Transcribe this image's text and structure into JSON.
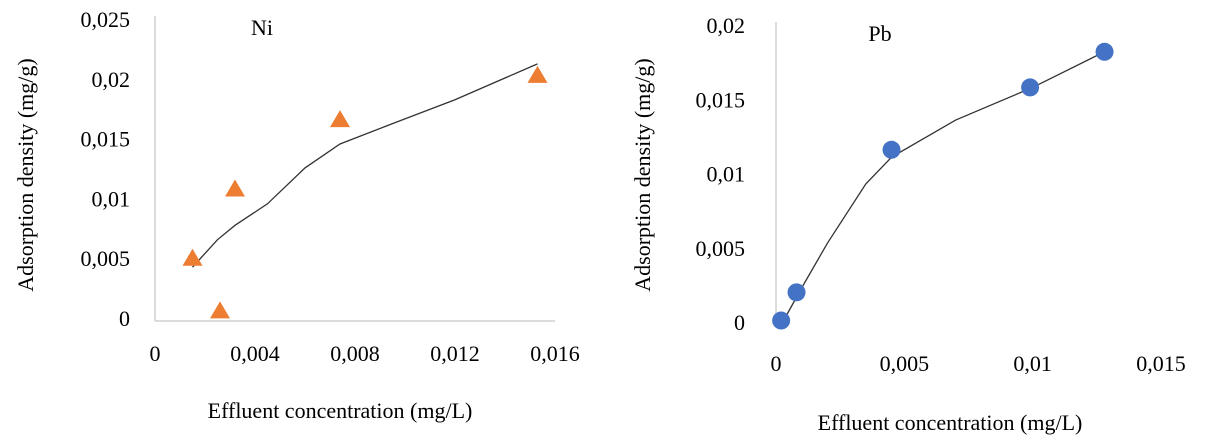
{
  "chart_data": [
    {
      "type": "scatter",
      "title": "Ni",
      "x_label": "Effluent concentration (mg/L)",
      "y_label": "Adsorption density (mg/g)",
      "xlim": [
        0,
        0.016
      ],
      "ylim": [
        0,
        0.025
      ],
      "xticks": [
        0,
        {
          "value": 0.004,
          "label": "0,004"
        },
        {
          "value": 0.008,
          "label": "0,008"
        },
        {
          "value": 0.012,
          "label": "0,012"
        },
        {
          "value": 0.016,
          "label": "0,016"
        }
      ],
      "yticks": [
        0,
        {
          "value": 0.005,
          "label": "0,005"
        },
        {
          "value": 0.01,
          "label": "0,01"
        },
        {
          "value": 0.015,
          "label": "0,015"
        },
        {
          "value": 0.02,
          "label": "0,02"
        },
        {
          "value": 0.025,
          "label": "0,025"
        }
      ],
      "marker": "triangle",
      "color": "#ed7d31",
      "x": [
        0.0015,
        0.0026,
        0.0032,
        0.0074,
        0.0153
      ],
      "values": [
        0.0052,
        0.0008,
        0.011,
        0.0168,
        0.0205
      ],
      "trend": {
        "color": "#333333",
        "x": [
          0.0015,
          0.0025,
          0.0032,
          0.0045,
          0.006,
          0.0074,
          0.0095,
          0.012,
          0.0153
        ],
        "values": [
          0.0045,
          0.0068,
          0.008,
          0.0098,
          0.0128,
          0.0148,
          0.0165,
          0.0185,
          0.0215
        ]
      }
    },
    {
      "type": "scatter",
      "title": "Pb",
      "x_label": "Effluent concentration (mg/L)",
      "y_label": "Adsorption density (mg/g)",
      "xlim": [
        0,
        0.015
      ],
      "ylim": [
        0,
        0.02
      ],
      "xticks": [
        0,
        {
          "value": 0.005,
          "label": "0,005"
        },
        {
          "value": 0.01,
          "label": "0,01"
        },
        {
          "value": 0.015,
          "label": "0,015"
        }
      ],
      "yticks": [
        0,
        {
          "value": 0.005,
          "label": "0,005"
        },
        {
          "value": 0.01,
          "label": "0,01"
        },
        {
          "value": 0.015,
          "label": "0,015"
        },
        {
          "value": 0.02,
          "label": "0,02"
        }
      ],
      "marker": "circle",
      "color": "#4472c4",
      "x": [
        0.0002,
        0.0008,
        0.0045,
        0.0099,
        0.0128
      ],
      "values": [
        0.0003,
        0.0022,
        0.0118,
        0.016,
        0.0184
      ],
      "trend": {
        "color": "#333333",
        "x": [
          0.0002,
          0.001,
          0.002,
          0.0035,
          0.0045,
          0.007,
          0.01,
          0.0128
        ],
        "values": [
          0,
          0.0025,
          0.0055,
          0.0095,
          0.0113,
          0.0138,
          0.016,
          0.0184
        ]
      }
    }
  ]
}
